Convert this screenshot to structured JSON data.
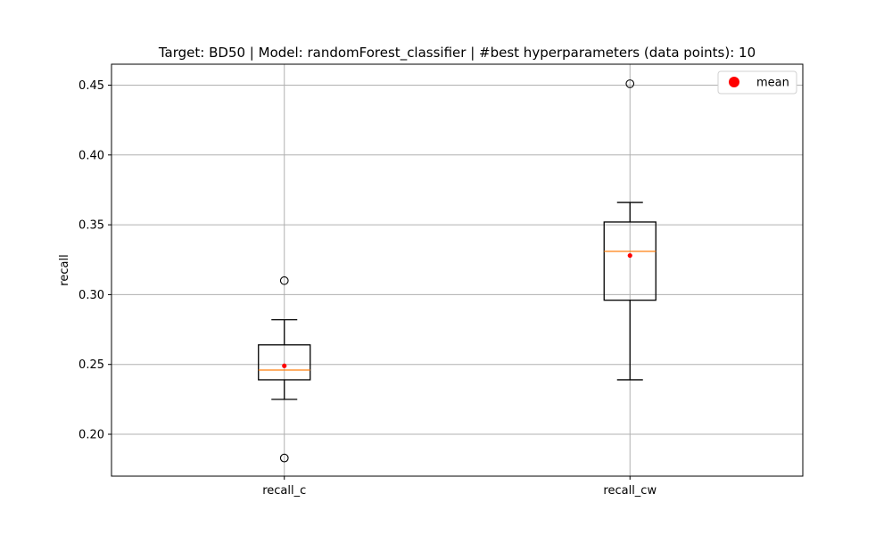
{
  "chart_data": {
    "type": "boxplot",
    "title": "Target: BD50 | Model: randomForest_classifier | #best hyperparameters (data points): 10",
    "xlabel": "",
    "ylabel": "recall",
    "categories": [
      "recall_c",
      "recall_cw"
    ],
    "ylim": [
      0.17,
      0.465
    ],
    "yticks": [
      0.2,
      0.25,
      0.3,
      0.35,
      0.4,
      0.45
    ],
    "ytick_labels": [
      "0.20",
      "0.25",
      "0.30",
      "0.35",
      "0.40",
      "0.45"
    ],
    "grid": true,
    "legend": {
      "position": "top-right",
      "entries": [
        {
          "label": "mean",
          "marker": "circle",
          "color": "#ff0000"
        }
      ]
    },
    "boxes": [
      {
        "category": "recall_c",
        "whisker_low": 0.225,
        "q1": 0.239,
        "median": 0.246,
        "q3": 0.264,
        "whisker_high": 0.282,
        "mean": 0.249,
        "outliers": [
          0.31,
          0.183
        ]
      },
      {
        "category": "recall_cw",
        "whisker_low": 0.239,
        "q1": 0.296,
        "median": 0.331,
        "q3": 0.352,
        "whisker_high": 0.366,
        "mean": 0.328,
        "outliers": [
          0.451
        ]
      }
    ],
    "colors": {
      "box": "#000000",
      "median": "#ff7f0e",
      "mean": "#ff0000",
      "grid": "#b0b0b0"
    }
  }
}
